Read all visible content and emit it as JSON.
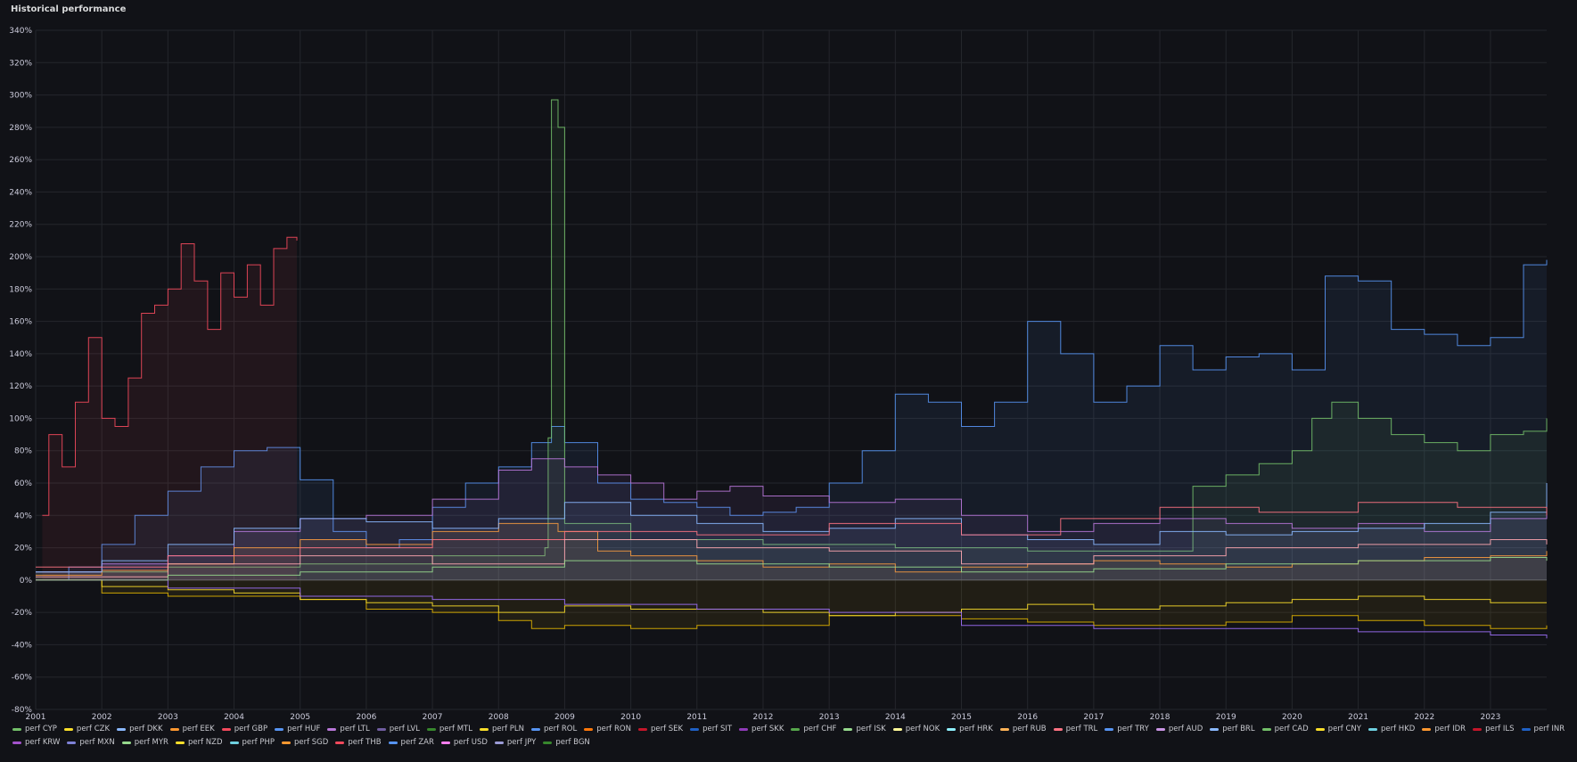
{
  "panel": {
    "title": "Historical performance"
  },
  "chart_data": {
    "type": "line",
    "title": "Historical performance",
    "xlabel": "",
    "ylabel": "",
    "y_unit": "%",
    "ylim": [
      -80,
      340
    ],
    "xlim": [
      2001.0,
      2023.85
    ],
    "x_ticks": [
      "2001",
      "2002",
      "2003",
      "2004",
      "2005",
      "2006",
      "2007",
      "2008",
      "2009",
      "2010",
      "2011",
      "2012",
      "2013",
      "2014",
      "2015",
      "2016",
      "2017",
      "2018",
      "2019",
      "2020",
      "2021",
      "2022",
      "2023"
    ],
    "y_ticks": [
      "-80%",
      "-60%",
      "-40%",
      "-20%",
      "0%",
      "20%",
      "40%",
      "60%",
      "80%",
      "100%",
      "120%",
      "140%",
      "160%",
      "180%",
      "200%",
      "220%",
      "240%",
      "260%",
      "280%",
      "300%",
      "320%",
      "340%"
    ],
    "grid": true,
    "legend_position": "bottom",
    "series": [
      {
        "name": "perf TRY",
        "color": "#5794f2",
        "fill": true,
        "x": [
          2001.0,
          2001.5,
          2002.0,
          2002.5,
          2003.0,
          2003.5,
          2004.0,
          2004.5,
          2005.0,
          2005.5,
          2006.0,
          2006.5,
          2007.0,
          2007.5,
          2008.0,
          2008.5,
          2008.8,
          2009.0,
          2009.5,
          2010.0,
          2010.5,
          2011.0,
          2011.5,
          2012.0,
          2012.5,
          2013.0,
          2013.5,
          2014.0,
          2014.5,
          2015.0,
          2015.5,
          2016.0,
          2016.5,
          2017.0,
          2017.5,
          2018.0,
          2018.5,
          2019.0,
          2019.5,
          2020.0,
          2020.5,
          2021.0,
          2021.5,
          2022.0,
          2022.5,
          2023.0,
          2023.5,
          2023.85
        ],
        "values": [
          0,
          8,
          22,
          40,
          55,
          70,
          80,
          82,
          62,
          30,
          20,
          25,
          45,
          60,
          70,
          85,
          95,
          85,
          60,
          50,
          48,
          45,
          40,
          42,
          45,
          60,
          80,
          115,
          110,
          95,
          110,
          160,
          140,
          110,
          120,
          145,
          130,
          138,
          140,
          130,
          188,
          185,
          155,
          152,
          145,
          150,
          195,
          198
        ]
      },
      {
        "name": "perf CYP",
        "color": "#73bf69",
        "fill": true,
        "x": [
          2001.0,
          2003.0,
          2005.0,
          2007.0,
          2008.7,
          2008.75,
          2008.8,
          2008.9,
          2009.0,
          2010.0,
          2012.0,
          2014.0,
          2016.0,
          2018.0,
          2018.5,
          2019.0,
          2019.5,
          2020.0,
          2020.3,
          2020.6,
          2021.0,
          2021.5,
          2022.0,
          2022.5,
          2023.0,
          2023.5,
          2023.85
        ],
        "values": [
          5,
          8,
          10,
          15,
          20,
          88,
          297,
          280,
          35,
          25,
          22,
          20,
          18,
          18,
          58,
          65,
          72,
          80,
          100,
          110,
          100,
          90,
          85,
          80,
          90,
          92,
          100
        ]
      },
      {
        "name": "perf ROL",
        "color": "#f2495c",
        "fill": true,
        "x": [
          2001.1,
          2001.2,
          2001.4,
          2001.6,
          2001.8,
          2002.0,
          2002.2,
          2002.4,
          2002.6,
          2002.8,
          2003.0,
          2003.2,
          2003.4,
          2003.6,
          2003.8,
          2004.0,
          2004.2,
          2004.4,
          2004.6,
          2004.8,
          2004.95
        ],
        "values": [
          40,
          90,
          70,
          110,
          150,
          100,
          95,
          125,
          165,
          170,
          180,
          208,
          185,
          155,
          190,
          175,
          195,
          170,
          205,
          212,
          210
        ]
      },
      {
        "name": "perf RON",
        "color": "#b877d9",
        "fill": true,
        "x": [
          2001.0,
          2002.0,
          2003.0,
          2004.0,
          2005.0,
          2006.0,
          2007.0,
          2008.0,
          2008.5,
          2009.0,
          2009.5,
          2010.0,
          2010.5,
          2011.0,
          2011.5,
          2012.0,
          2013.0,
          2014.0,
          2015.0,
          2016.0,
          2017.0,
          2018.0,
          2019.0,
          2020.0,
          2021.0,
          2022.0,
          2023.0,
          2023.85
        ],
        "values": [
          5,
          10,
          15,
          30,
          38,
          40,
          50,
          68,
          75,
          70,
          65,
          60,
          50,
          55,
          58,
          52,
          48,
          50,
          40,
          30,
          35,
          38,
          35,
          32,
          35,
          30,
          38,
          42
        ]
      },
      {
        "name": "perf ISK",
        "color": "#ff9830",
        "fill": true,
        "x": [
          2001.0,
          2002.0,
          2003.0,
          2004.0,
          2005.0,
          2006.0,
          2007.0,
          2008.0,
          2008.9,
          2009.5,
          2010.0,
          2011.0,
          2012.0,
          2013.0,
          2014.0,
          2015.0,
          2016.0,
          2017.0,
          2018.0,
          2019.0,
          2020.0,
          2021.0,
          2022.0,
          2023.0,
          2023.85
        ],
        "values": [
          3,
          6,
          10,
          20,
          25,
          22,
          30,
          35,
          30,
          18,
          15,
          12,
          8,
          10,
          5,
          8,
          10,
          12,
          10,
          8,
          10,
          12,
          14,
          15,
          18
        ]
      },
      {
        "name": "perf HUF",
        "color": "#8ab8ff",
        "fill": true,
        "x": [
          2001.0,
          2002.0,
          2003.0,
          2004.0,
          2005.0,
          2006.0,
          2007.0,
          2008.0,
          2009.0,
          2010.0,
          2011.0,
          2012.0,
          2013.0,
          2014.0,
          2015.0,
          2016.0,
          2017.0,
          2018.0,
          2019.0,
          2020.0,
          2021.0,
          2022.0,
          2023.0,
          2023.85
        ],
        "values": [
          5,
          12,
          22,
          32,
          38,
          36,
          32,
          38,
          48,
          40,
          35,
          30,
          32,
          38,
          28,
          25,
          22,
          30,
          28,
          30,
          32,
          35,
          42,
          60
        ]
      },
      {
        "name": "perf KRW",
        "color": "#e0b400",
        "fill": true,
        "x": [
          2001.0,
          2002.0,
          2003.0,
          2004.0,
          2005.0,
          2006.0,
          2007.0,
          2008.0,
          2008.5,
          2009.0,
          2010.0,
          2011.0,
          2012.0,
          2013.0,
          2014.0,
          2015.0,
          2016.0,
          2017.0,
          2018.0,
          2019.0,
          2020.0,
          2021.0,
          2022.0,
          2023.0,
          2023.85
        ],
        "values": [
          0,
          -8,
          -10,
          -10,
          -12,
          -18,
          -20,
          -25,
          -30,
          -28,
          -30,
          -28,
          -28,
          -22,
          -22,
          -24,
          -26,
          -28,
          -28,
          -26,
          -22,
          -25,
          -28,
          -30,
          -28
        ]
      },
      {
        "name": "perf SGD",
        "color": "#fade2a",
        "fill": false,
        "x": [
          2001.0,
          2002.0,
          2003.0,
          2004.0,
          2005.0,
          2006.0,
          2007.0,
          2008.0,
          2009.0,
          2010.0,
          2011.0,
          2012.0,
          2013.0,
          2014.0,
          2015.0,
          2016.0,
          2017.0,
          2018.0,
          2019.0,
          2020.0,
          2021.0,
          2022.0,
          2023.0,
          2023.85
        ],
        "values": [
          0,
          -4,
          -6,
          -8,
          -12,
          -14,
          -16,
          -20,
          -16,
          -18,
          -18,
          -20,
          -22,
          -20,
          -18,
          -15,
          -18,
          -16,
          -14,
          -12,
          -10,
          -12,
          -14,
          -14
        ]
      },
      {
        "name": "perf PHP",
        "color": "#9d70f9",
        "fill": false,
        "x": [
          2001.0,
          2003.0,
          2005.0,
          2007.0,
          2009.0,
          2011.0,
          2013.0,
          2015.0,
          2017.0,
          2019.0,
          2021.0,
          2023.0,
          2023.85
        ],
        "values": [
          0,
          -5,
          -10,
          -12,
          -15,
          -18,
          -20,
          -28,
          -30,
          -30,
          -32,
          -34,
          -36
        ]
      },
      {
        "name": "perf USD",
        "color": "#ff7383",
        "fill": false,
        "x": [
          2001.0,
          2003.0,
          2005.0,
          2007.0,
          2009.0,
          2011.0,
          2013.0,
          2015.0,
          2016.5,
          2018.0,
          2019.5,
          2021.0,
          2022.5,
          2023.85
        ],
        "values": [
          8,
          15,
          20,
          25,
          30,
          28,
          35,
          28,
          38,
          45,
          42,
          48,
          45,
          40
        ]
      },
      {
        "name": "perf JPY",
        "color": "#ffa6b0",
        "fill": false,
        "x": [
          2001.0,
          2003.0,
          2005.0,
          2007.0,
          2009.0,
          2011.0,
          2013.0,
          2015.0,
          2017.0,
          2019.0,
          2021.0,
          2023.0,
          2023.85
        ],
        "values": [
          2,
          10,
          15,
          10,
          25,
          20,
          18,
          10,
          15,
          20,
          22,
          25,
          22
        ]
      },
      {
        "name": "perf BGN",
        "color": "#96d98d",
        "fill": false,
        "x": [
          2001.0,
          2003.0,
          2005.0,
          2007.0,
          2009.0,
          2011.0,
          2013.0,
          2015.0,
          2017.0,
          2019.0,
          2021.0,
          2023.0,
          2023.85
        ],
        "values": [
          0,
          3,
          5,
          8,
          12,
          10,
          8,
          5,
          7,
          10,
          12,
          14,
          12
        ]
      }
    ]
  },
  "legend": [
    {
      "label": "perf CYP",
      "color": "#73bf69"
    },
    {
      "label": "perf CZK",
      "color": "#fade2a"
    },
    {
      "label": "perf DKK",
      "color": "#8ab8ff"
    },
    {
      "label": "perf EEK",
      "color": "#ff9830"
    },
    {
      "label": "perf GBP",
      "color": "#f2495c"
    },
    {
      "label": "perf HUF",
      "color": "#5794f2"
    },
    {
      "label": "perf LTL",
      "color": "#b877d9"
    },
    {
      "label": "perf LVL",
      "color": "#705da0"
    },
    {
      "label": "perf MTL",
      "color": "#37872d"
    },
    {
      "label": "perf PLN",
      "color": "#fade2a"
    },
    {
      "label": "perf ROL",
      "color": "#5794f2"
    },
    {
      "label": "perf RON",
      "color": "#ff780a"
    },
    {
      "label": "perf SEK",
      "color": "#c4162a"
    },
    {
      "label": "perf SIT",
      "color": "#1f60c4"
    },
    {
      "label": "perf SKK",
      "color": "#8f3bb8"
    },
    {
      "label": "perf CHF",
      "color": "#56a64b"
    },
    {
      "label": "perf ISK",
      "color": "#96d98d"
    },
    {
      "label": "perf NOK",
      "color": "#fff899"
    },
    {
      "label": "perf HRK",
      "color": "#8ff0ff"
    },
    {
      "label": "perf RUB",
      "color": "#ffb357"
    },
    {
      "label": "perf TRL",
      "color": "#ff7383"
    },
    {
      "label": "perf TRY",
      "color": "#5794f2"
    },
    {
      "label": "perf AUD",
      "color": "#ca95e5"
    },
    {
      "label": "perf BRL",
      "color": "#8ab8ff"
    },
    {
      "label": "perf CAD",
      "color": "#73bf69"
    },
    {
      "label": "perf CNY",
      "color": "#fade2a"
    },
    {
      "label": "perf HKD",
      "color": "#6ed0e0"
    },
    {
      "label": "perf IDR",
      "color": "#ff9830"
    },
    {
      "label": "perf ILS",
      "color": "#c4162a"
    },
    {
      "label": "perf INR",
      "color": "#1f60c4"
    },
    {
      "label": "perf KRW",
      "color": "#a352cc"
    },
    {
      "label": "perf MXN",
      "color": "#7e81d6"
    },
    {
      "label": "perf MYR",
      "color": "#96d98d"
    },
    {
      "label": "perf NZD",
      "color": "#fade2a"
    },
    {
      "label": "perf PHP",
      "color": "#6ed0e0"
    },
    {
      "label": "perf SGD",
      "color": "#ff9830"
    },
    {
      "label": "perf THB",
      "color": "#f2495c"
    },
    {
      "label": "perf ZAR",
      "color": "#5794f2"
    },
    {
      "label": "perf USD",
      "color": "#ff7eef"
    },
    {
      "label": "perf JPY",
      "color": "#9b9bd6"
    },
    {
      "label": "perf BGN",
      "color": "#37872d"
    }
  ]
}
